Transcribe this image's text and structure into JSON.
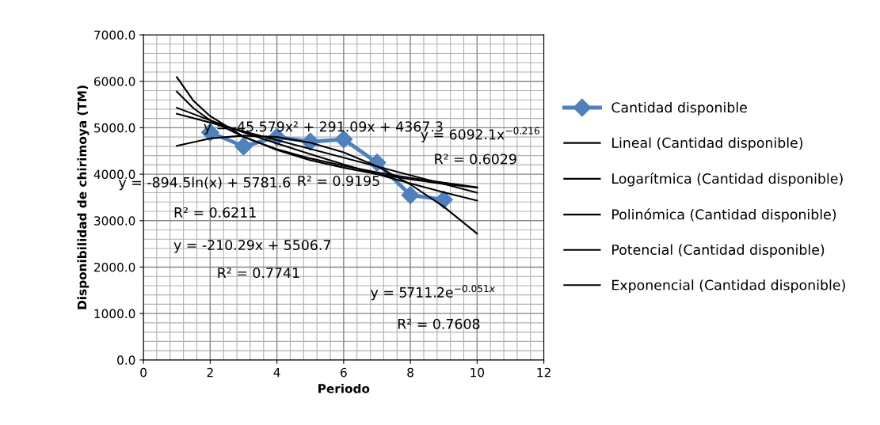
{
  "chart_data": {
    "type": "line",
    "xlabel": "Periodo",
    "ylabel": "Disponibilidad de chirimoya (TM)",
    "xlim": [
      0,
      12
    ],
    "xticks": [
      0,
      2,
      4,
      6,
      8,
      10,
      12
    ],
    "ylim": [
      0,
      7000
    ],
    "yticks": [
      {
        "value": 0,
        "label": "0.0"
      },
      {
        "value": 1000,
        "label": "1000.0"
      },
      {
        "value": 2000,
        "label": "2000.0"
      },
      {
        "value": 3000,
        "label": "3000.0"
      },
      {
        "value": 4000,
        "label": "4000.0"
      },
      {
        "value": 5000,
        "label": "5000.0"
      },
      {
        "value": 6000,
        "label": "6000.0"
      },
      {
        "value": 7000,
        "label": "7000.0"
      }
    ],
    "grid": true,
    "legend": "right",
    "series": [
      {
        "name": "Cantidad disponible",
        "color": "#4f81bd",
        "marker": "diamond",
        "x": [
          2,
          3,
          4,
          5,
          6,
          7,
          8,
          9
        ],
        "values": [
          4900,
          4600,
          4800,
          4700,
          4750,
          4250,
          3550,
          3450
        ]
      },
      {
        "name": "Lineal (Cantidad disponible)",
        "color": "#000000",
        "marker": "none",
        "x": [
          1,
          10
        ],
        "values": [
          5300,
          3600
        ]
      },
      {
        "name": "Logarítmica (Cantidad disponible)",
        "color": "#000000",
        "marker": "none",
        "x": [
          1,
          1.5,
          2,
          3,
          4,
          5,
          6,
          7,
          8,
          9,
          10
        ],
        "values": [
          5780,
          5420,
          5160,
          4800,
          4540,
          4340,
          4180,
          4040,
          3920,
          3820,
          3720
        ]
      },
      {
        "name": "Polinómica (Cantidad disponible)",
        "color": "#000000",
        "marker": "none",
        "x": [
          1,
          2,
          3,
          4,
          5,
          6,
          7,
          8,
          9,
          10
        ],
        "values": [
          4610,
          4770,
          4830,
          4800,
          4680,
          4470,
          4170,
          3780,
          3300,
          2720
        ]
      },
      {
        "name": "Potencial (Cantidad disponible)",
        "color": "#000000",
        "marker": "none",
        "x": [
          1,
          1.5,
          2,
          3,
          4,
          5,
          6,
          7,
          8,
          9,
          10
        ],
        "values": [
          6090,
          5580,
          5250,
          4810,
          4520,
          4300,
          4140,
          4000,
          3890,
          3790,
          3710
        ]
      },
      {
        "name": "Exponencial (Cantidad disponible)",
        "color": "#000000",
        "marker": "none",
        "x": [
          1,
          2,
          3,
          4,
          5,
          6,
          7,
          8,
          9,
          10
        ],
        "values": [
          5430,
          5160,
          4900,
          4660,
          4430,
          4210,
          4000,
          3800,
          3610,
          3430
        ]
      }
    ],
    "annotations": [
      "y = -45.579x² + 291.09x + 4367.3",
      "R² = 0.9195",
      "y = 6092.1x$^{−0.216}$",
      "R² = 0.6029",
      "y = -894.5ln(x) + 5781.6",
      "R² = 0.6211",
      "y = -210.29x + 5506.7",
      "R² = 0.7741",
      "y = 5711.2e$^{−0.051x}$",
      "R² = 0.7608"
    ]
  }
}
